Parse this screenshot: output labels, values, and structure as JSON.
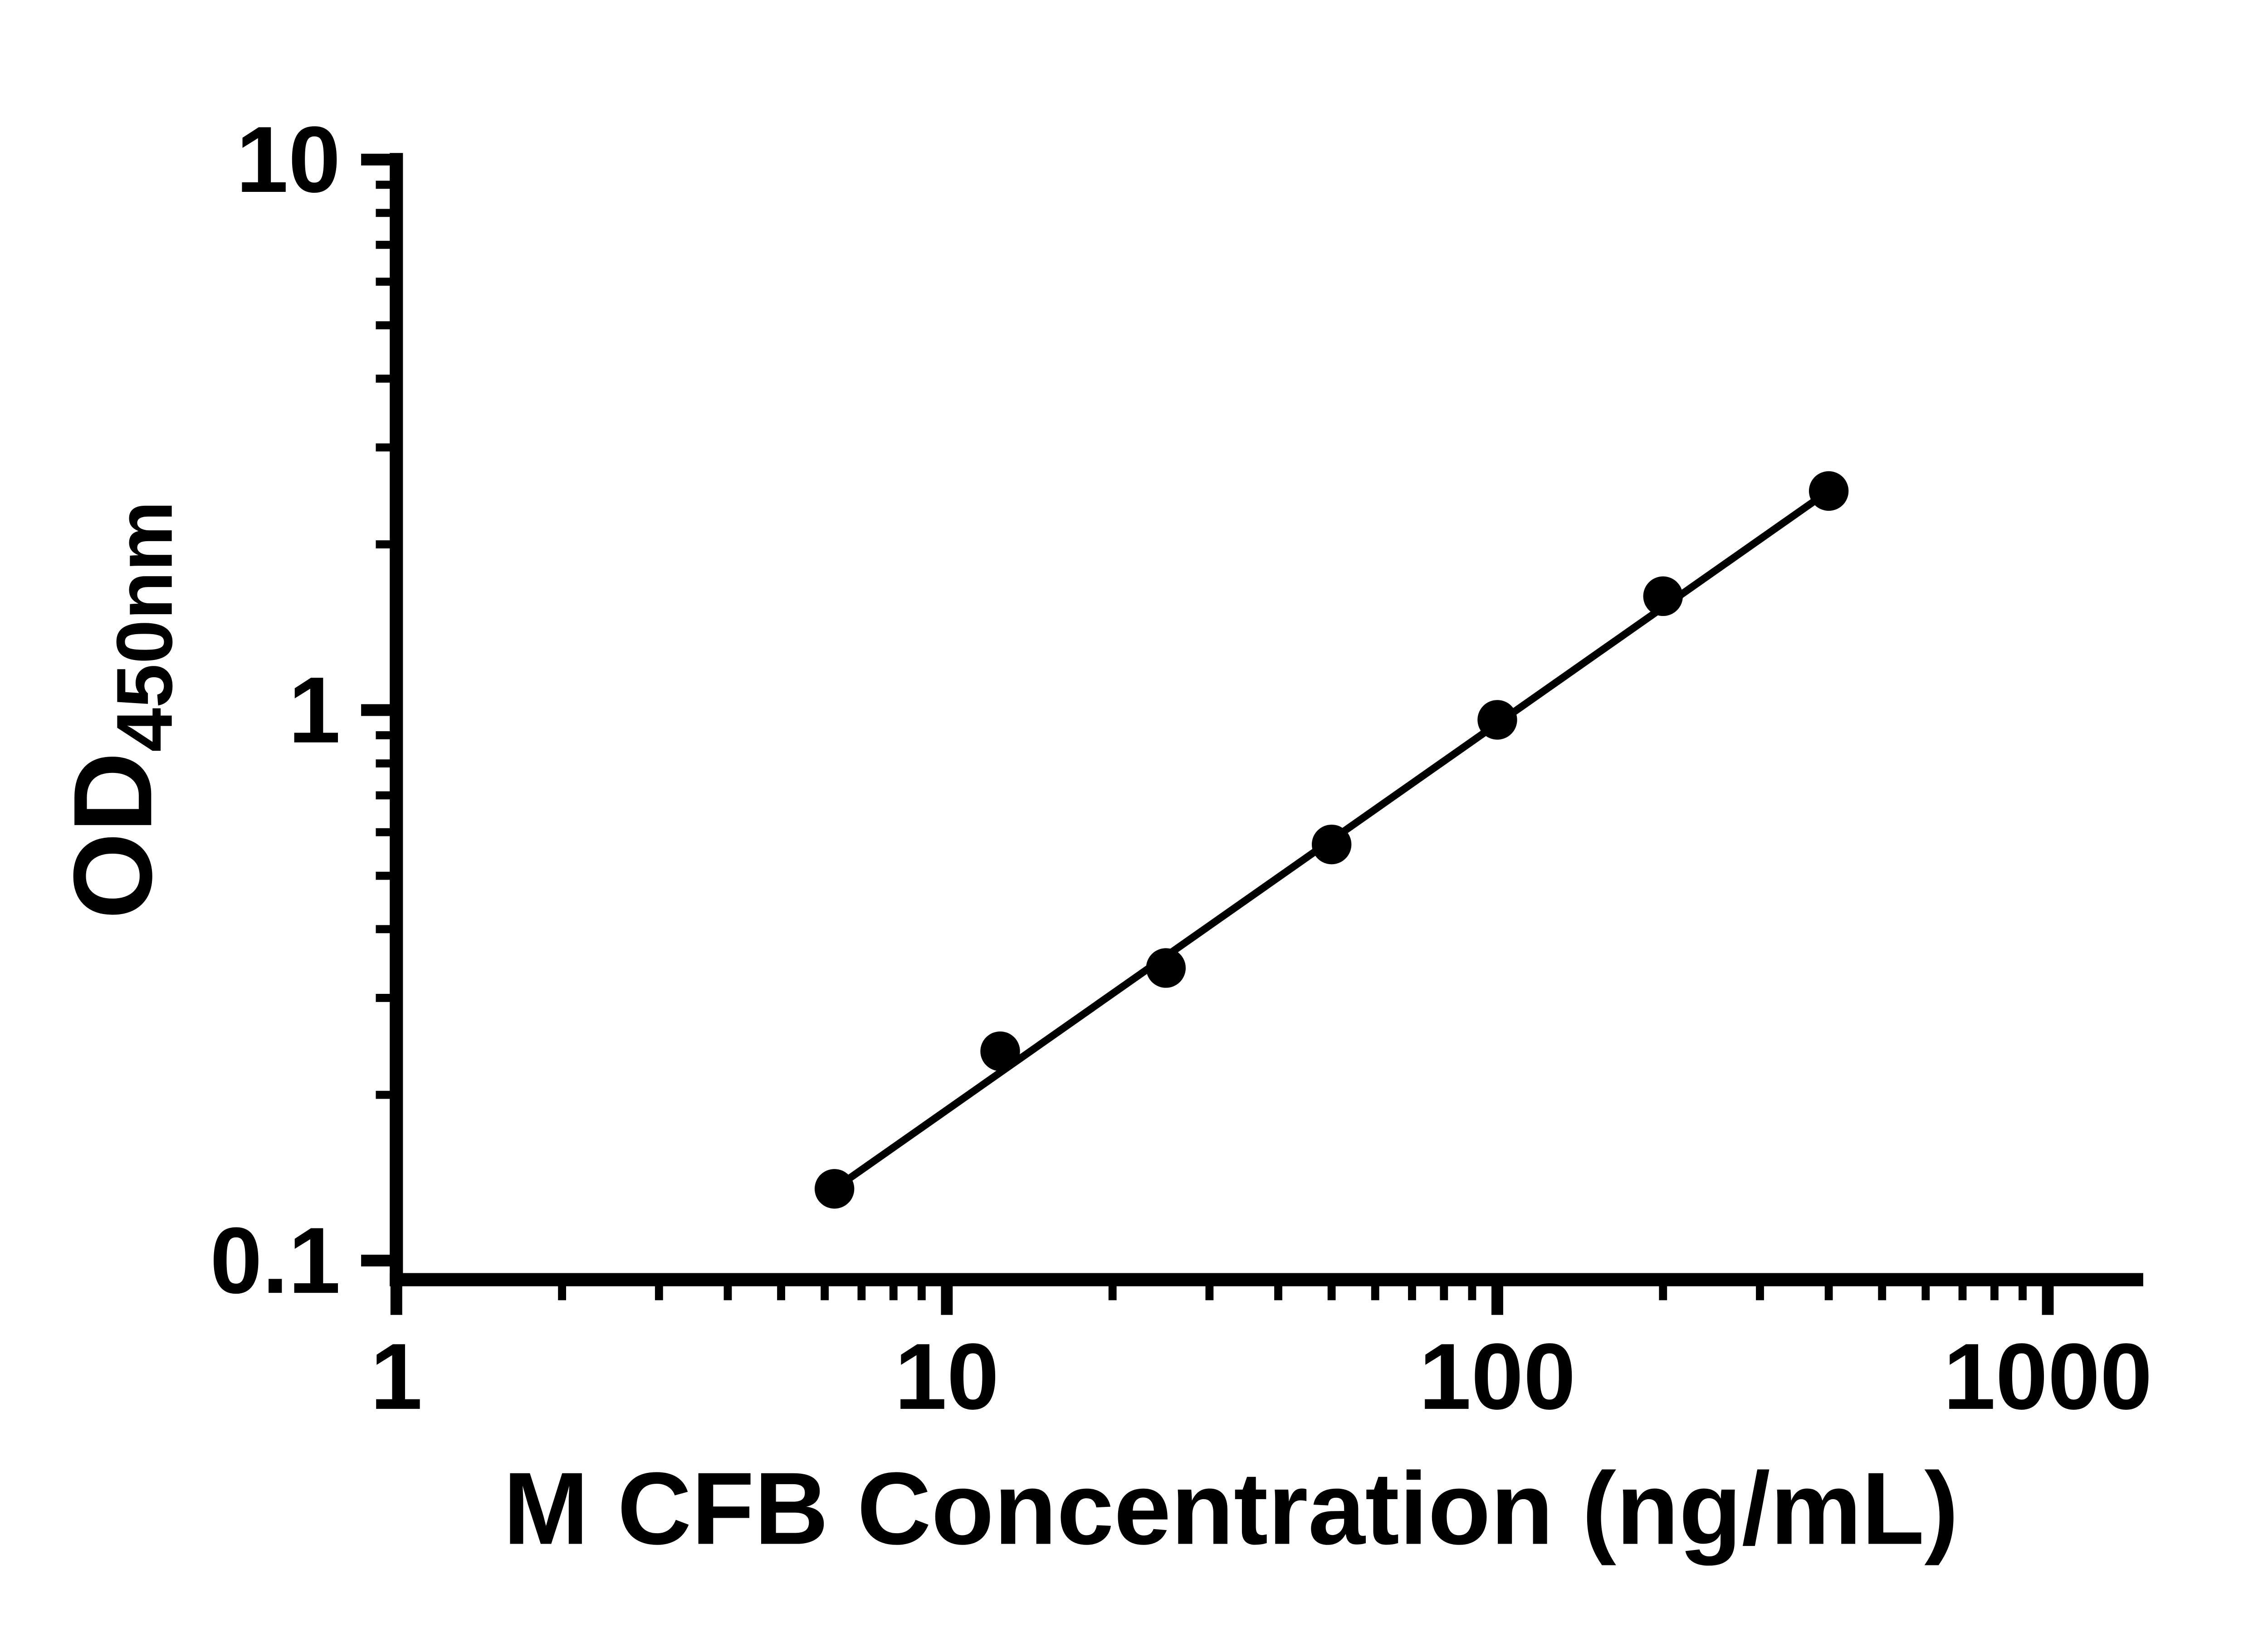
{
  "chart_data": {
    "type": "scatter",
    "title": "",
    "xlabel": "M CFB Concentration (ng/mL)",
    "ylabel": "OD",
    "ylabel_subscript": "450nm",
    "x_scale": "log10",
    "y_scale": "log10",
    "xlim": [
      1,
      1000
    ],
    "ylim": [
      0.1,
      10
    ],
    "grid": false,
    "legend": null,
    "x_ticks": [
      {
        "value": 1,
        "label": "1"
      },
      {
        "value": 10,
        "label": "10"
      },
      {
        "value": 100,
        "label": "100"
      },
      {
        "value": 1000,
        "label": "1000"
      }
    ],
    "y_ticks": [
      {
        "value": 0.1,
        "label": "0.1"
      },
      {
        "value": 1,
        "label": "1"
      },
      {
        "value": 10,
        "label": "10"
      }
    ],
    "minor_log_ticks": true,
    "series": [
      {
        "marker": "filled-circle",
        "color": "#000000",
        "points": [
          {
            "x": 6.25,
            "y": 0.135
          },
          {
            "x": 12.5,
            "y": 0.24
          },
          {
            "x": 25,
            "y": 0.34
          },
          {
            "x": 50,
            "y": 0.57
          },
          {
            "x": 100,
            "y": 0.96
          },
          {
            "x": 200,
            "y": 1.61
          },
          {
            "x": 400,
            "y": 2.5
          }
        ]
      }
    ],
    "trend_line": {
      "x1": 6.25,
      "y1": 0.135,
      "x2": 400,
      "y2": 2.5,
      "color": "#000000"
    },
    "colors": {
      "foreground": "#000000",
      "background": "#ffffff"
    }
  }
}
